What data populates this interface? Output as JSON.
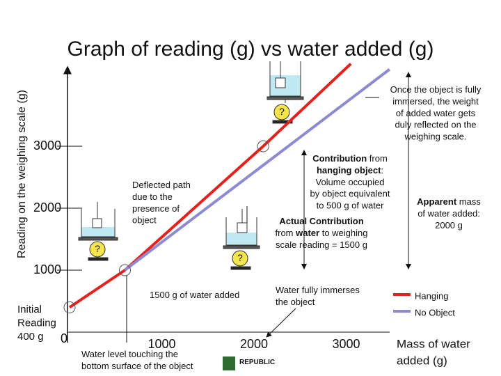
{
  "chart_data": {
    "type": "line",
    "title": "Graph of reading (g) vs water added (g)",
    "y_label": "Reading on the weighing scale (g)",
    "x_label_lines": [
      "Mass of water",
      "added (g)"
    ],
    "xlim": [
      0,
      3480
    ],
    "ylim": [
      0,
      4300
    ],
    "xticks": [
      0,
      1000,
      2000,
      3000
    ],
    "yticks": [
      1000,
      2000,
      3000
    ],
    "series": [
      {
        "name": "Hanging",
        "color": "#e8201c",
        "x": [
          0,
          600,
          2100,
          3050
        ],
        "values": [
          400,
          1000,
          3000,
          4330
        ]
      },
      {
        "name": "No Object",
        "color": "#8c8ad2",
        "x": [
          600,
          3470
        ],
        "values": [
          1000,
          4240
        ]
      }
    ],
    "annotations": [
      {
        "lines": [
          [
            "Initial"
          ],
          [
            "Reading"
          ],
          [
            "400 g"
          ]
        ],
        "x": 25,
        "y": 445,
        "anchor": "start",
        "size": 15
      },
      {
        "lines": [
          [
            "Once the object is fully"
          ],
          [
            "immersed, the weight"
          ],
          [
            "of added water gets"
          ],
          [
            "duly reflected on the"
          ],
          [
            "weighing scale."
          ]
        ],
        "x": 626,
        "y": 130,
        "anchor": "middle"
      },
      {
        "lines": [
          [
            {
              "text": "Contribution",
              "bold": true
            },
            " from"
          ],
          [
            {
              "text": "hanging object",
              "bold": true
            },
            ":"
          ],
          [
            "Volume occupied"
          ],
          [
            "by object equivalent"
          ],
          [
            "to 500 g of water"
          ]
        ],
        "x": 503,
        "y": 229,
        "anchor": "middle"
      },
      {
        "lines": [
          [
            "Deflected path"
          ],
          [
            "due to the"
          ],
          [
            "presence of"
          ],
          [
            "object"
          ]
        ],
        "x": 190,
        "y": 267,
        "anchor": "start"
      },
      {
        "lines": [
          [
            {
              "text": "Actual Contribution",
              "bold": true
            }
          ],
          [
            "from ",
            {
              "text": "water",
              "bold": true
            },
            " to weighing"
          ],
          [
            "scale reading = 1500 g"
          ]
        ],
        "x": 462,
        "y": 319,
        "anchor": "middle"
      },
      {
        "lines": [
          [
            {
              "text": "Apparent",
              "bold": true
            },
            " mass"
          ],
          [
            "of water added:"
          ],
          [
            "2000 g"
          ]
        ],
        "x": 645,
        "y": 291,
        "anchor": "middle"
      },
      {
        "lines": [
          [
            "1500 g of water added"
          ]
        ],
        "x": 215,
        "y": 425,
        "anchor": "start"
      },
      {
        "lines": [
          [
            "Water fully immerses"
          ],
          [
            "the object"
          ]
        ],
        "x": 396,
        "y": 418,
        "anchor": "start"
      },
      {
        "lines": [
          [
            "Water level touching the"
          ],
          [
            "bottom surface of the object"
          ]
        ],
        "x": 117,
        "y": 510,
        "anchor": "start"
      },
      {
        "lines": [
          [
            "?"
          ]
        ],
        "x": 405,
        "y": 161,
        "anchor": "middle",
        "size": 14
      },
      {
        "lines": [
          [
            "?"
          ]
        ],
        "x": 140,
        "y": 358,
        "anchor": "middle",
        "size": 14
      },
      {
        "lines": [
          [
            "?"
          ]
        ],
        "x": 345,
        "y": 371,
        "anchor": "middle",
        "size": 14
      },
      {
        "lines": [
          [
            {
              "text": "REPUBLIC",
              "bold": true
            }
          ]
        ],
        "x": 344,
        "y": 520,
        "anchor": "start",
        "size": 10
      }
    ]
  }
}
